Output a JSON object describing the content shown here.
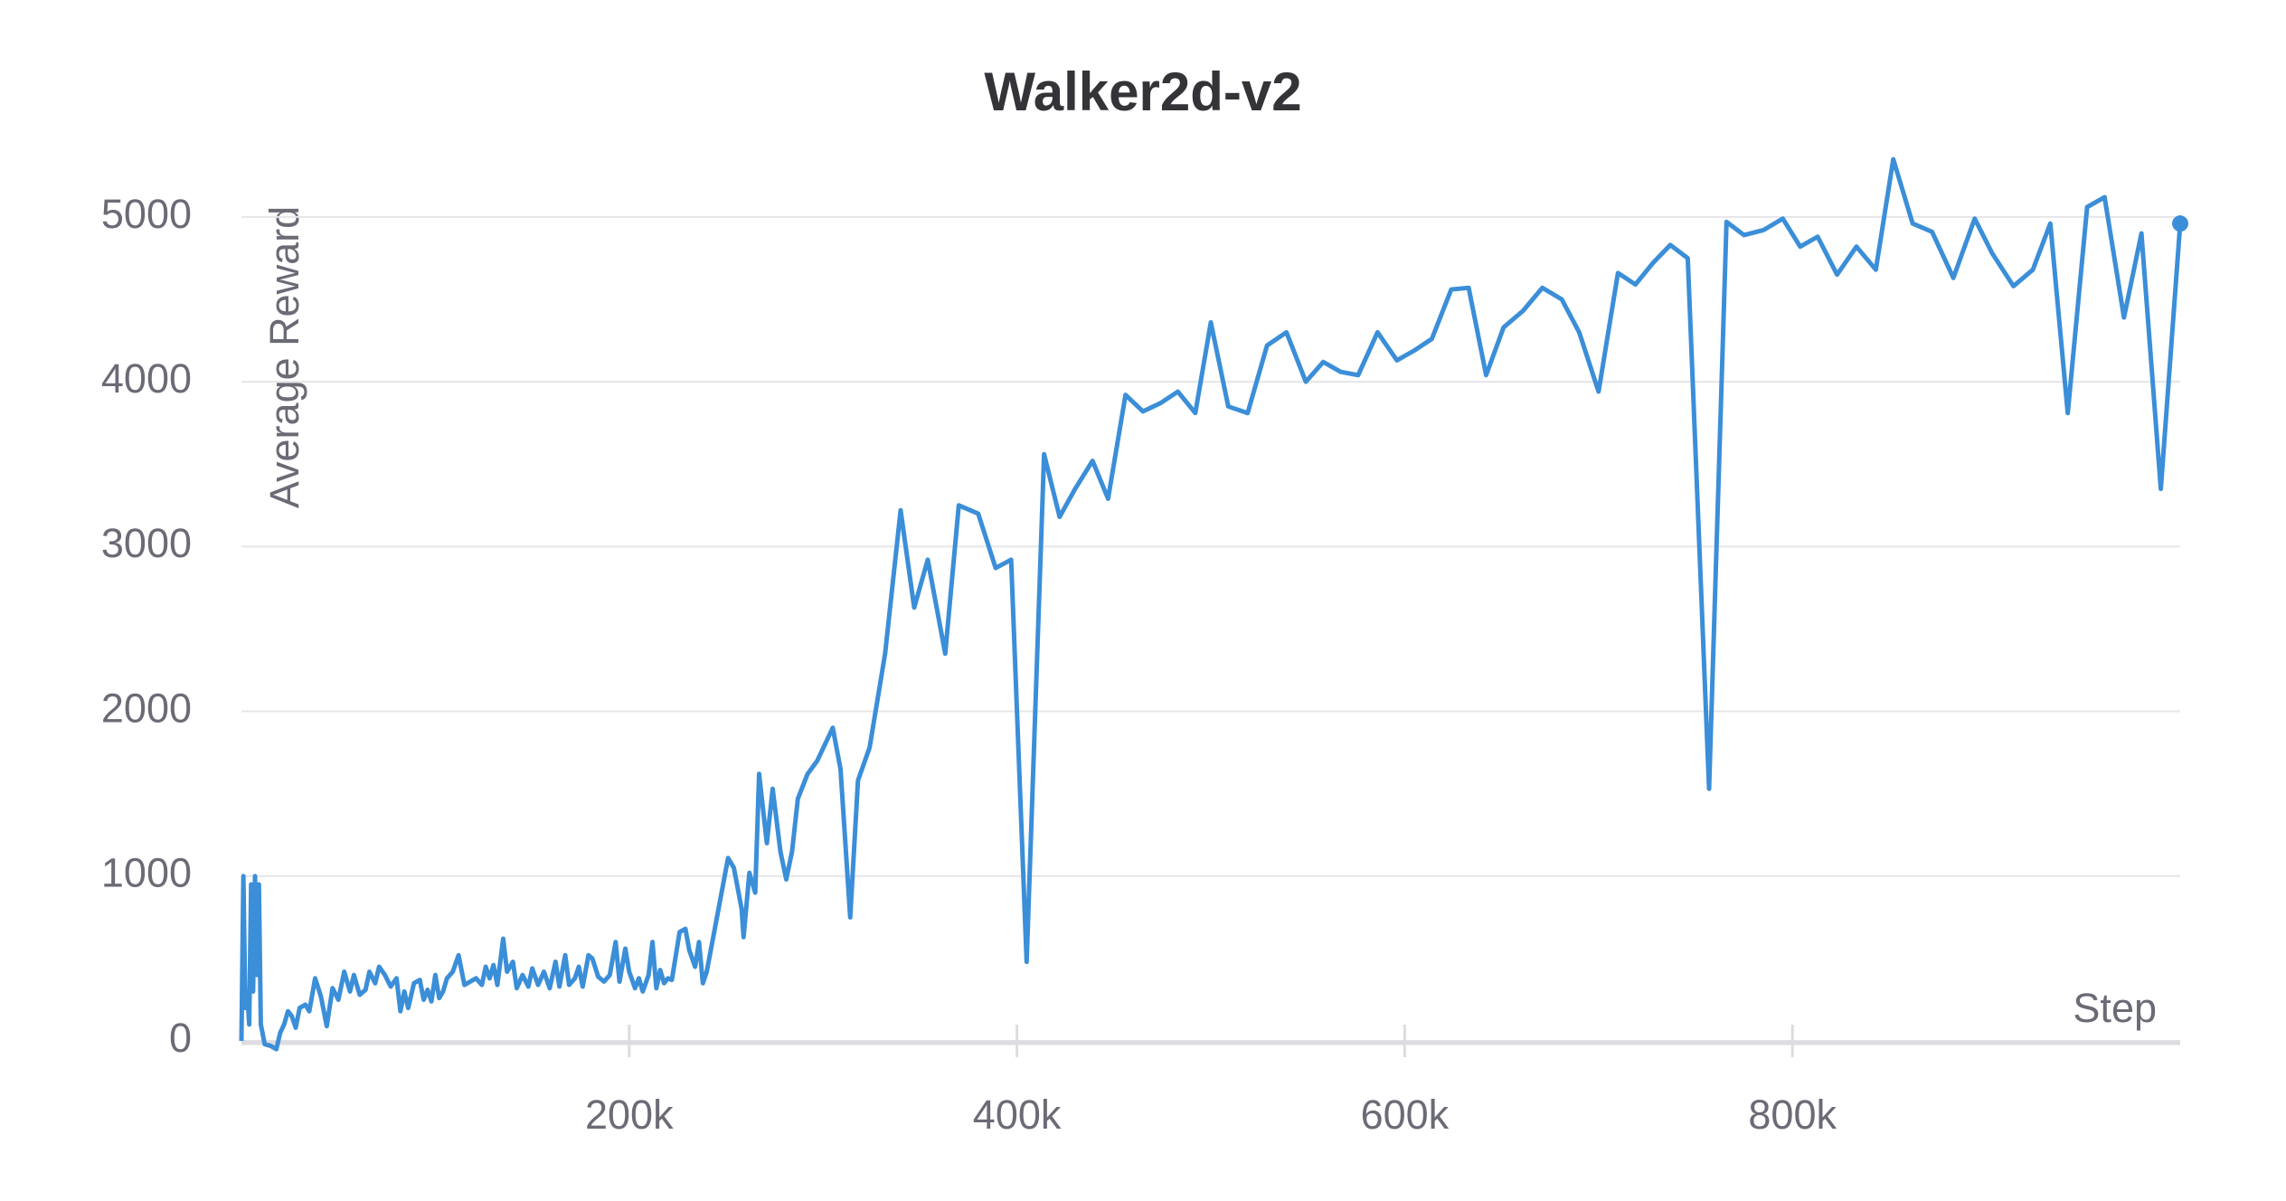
{
  "chart_data": {
    "type": "line",
    "title": "Walker2d-v2",
    "x_label": "Step",
    "y_label": "Average Reward",
    "xlim": [
      0,
      1000000
    ],
    "ylim": [
      0,
      5400
    ],
    "grid": true,
    "xticks": [
      {
        "value": 200000,
        "label": "200k"
      },
      {
        "value": 400000,
        "label": "400k"
      },
      {
        "value": 600000,
        "label": "600k"
      },
      {
        "value": 800000,
        "label": "800k"
      }
    ],
    "yticks": [
      0,
      1000,
      2000,
      3000,
      4000,
      5000
    ],
    "x": [
      0,
      1000,
      2000,
      3000,
      4000,
      5000,
      6000,
      7000,
      8000,
      9000,
      10000,
      12000,
      15000,
      18000,
      20000,
      22000,
      24000,
      26000,
      28000,
      30000,
      33000,
      35000,
      38000,
      41000,
      44000,
      47000,
      50000,
      53000,
      56000,
      58000,
      61000,
      64000,
      66000,
      69000,
      71000,
      74000,
      77000,
      80000,
      82000,
      84000,
      86000,
      89000,
      92000,
      94000,
      96000,
      98000,
      100000,
      102000,
      104000,
      106000,
      109000,
      112000,
      115000,
      118000,
      121000,
      124000,
      126000,
      128000,
      130000,
      132000,
      135000,
      137000,
      140000,
      142000,
      145000,
      148000,
      150000,
      153000,
      156000,
      159000,
      162000,
      164000,
      167000,
      169000,
      172000,
      174000,
      176000,
      179000,
      181000,
      184000,
      187000,
      190000,
      193000,
      195000,
      198000,
      200000,
      203000,
      205000,
      207000,
      210000,
      212000,
      214000,
      216000,
      218000,
      220000,
      222000,
      226000,
      229000,
      231000,
      234000,
      236000,
      238000,
      240000,
      251000,
      254000,
      258000,
      259000,
      262000,
      265000,
      267000,
      271000,
      274000,
      278000,
      281000,
      284000,
      287000,
      292000,
      297000,
      305000,
      309000,
      314000,
      318000,
      324000,
      332000,
      340000,
      347000,
      354000,
      363000,
      370000,
      380000,
      389000,
      397000,
      405000,
      414000,
      422000,
      430000,
      439000,
      447000,
      456000,
      465000,
      474000,
      483000,
      492000,
      500000,
      509000,
      519000,
      529000,
      539000,
      549000,
      558000,
      567000,
      576000,
      586000,
      596000,
      605000,
      614000,
      624000,
      633000,
      642000,
      651000,
      661000,
      671000,
      681000,
      690000,
      700000,
      710000,
      719000,
      728000,
      737000,
      746000,
      757000,
      766000,
      775000,
      785000,
      795000,
      804000,
      813000,
      823000,
      833000,
      843000,
      852000,
      862000,
      872000,
      883000,
      894000,
      903000,
      914000,
      924000,
      933000,
      942000,
      952000,
      961000,
      971000,
      980000,
      990000,
      1000000
    ],
    "series": [
      {
        "name": "Average Reward",
        "color": "#3b8ed8",
        "values": [
          0,
          1000,
          200,
          300,
          100,
          950,
          300,
          1000,
          400,
          950,
          100,
          -20,
          -30,
          -50,
          50,
          100,
          180,
          150,
          80,
          200,
          220,
          180,
          380,
          270,
          90,
          320,
          250,
          420,
          300,
          400,
          280,
          310,
          420,
          350,
          450,
          400,
          330,
          380,
          180,
          300,
          200,
          350,
          370,
          250,
          310,
          240,
          400,
          260,
          300,
          380,
          420,
          520,
          340,
          360,
          380,
          340,
          450,
          380,
          460,
          340,
          620,
          420,
          480,
          320,
          400,
          330,
          440,
          340,
          420,
          320,
          480,
          330,
          520,
          340,
          380,
          450,
          330,
          520,
          500,
          390,
          360,
          400,
          600,
          360,
          560,
          420,
          320,
          380,
          300,
          400,
          600,
          320,
          430,
          350,
          380,
          370,
          660,
          680,
          550,
          450,
          600,
          350,
          420,
          1110,
          1050,
          800,
          630,
          1020,
          900,
          1620,
          1200,
          1530,
          1150,
          980,
          1150,
          1470,
          1620,
          1700,
          1900,
          1650,
          750,
          1580,
          1780,
          2350,
          3220,
          2630,
          2920,
          2350,
          3250,
          3200,
          2870,
          2920,
          480,
          3560,
          3180,
          3350,
          3520,
          3290,
          3920,
          3820,
          3870,
          3940,
          3810,
          4360,
          3850,
          3810,
          4220,
          4300,
          4000,
          4120,
          4060,
          4040,
          4300,
          4130,
          4190,
          4260,
          4560,
          4570,
          4040,
          4330,
          4430,
          4570,
          4500,
          4300,
          3940,
          4660,
          4590,
          4720,
          4830,
          4750,
          1530,
          4970,
          4890,
          4920,
          4990,
          4820,
          4880,
          4650,
          4820,
          4680,
          5350,
          4960,
          4910,
          4630,
          4990,
          4780,
          4580,
          4680,
          4960,
          3810,
          5060,
          5120,
          4390,
          4900,
          3350,
          4960
        ]
      }
    ]
  }
}
